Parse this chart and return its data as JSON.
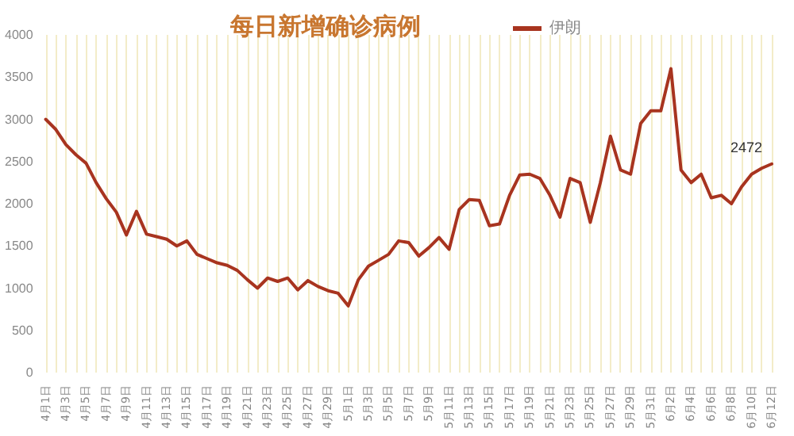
{
  "chart_data": {
    "type": "line",
    "title": "每日新增确诊病例",
    "categories": [
      "4月1日",
      null,
      "4月3日",
      null,
      "4月5日",
      null,
      "4月7日",
      null,
      "4月9日",
      null,
      "4月11日",
      null,
      "4月13日",
      null,
      "4月15日",
      null,
      "4月17日",
      null,
      "4月19日",
      null,
      "4月21日",
      null,
      "4月23日",
      null,
      "4月25日",
      null,
      "4月27日",
      null,
      "4月29日",
      null,
      "5月1日",
      null,
      "5月3日",
      null,
      "5月5日",
      null,
      "5月7日",
      null,
      "5月9日",
      null,
      "5月11日",
      null,
      "5月13日",
      null,
      "5月15日",
      null,
      "5月17日",
      null,
      "5月19日",
      null,
      "5月21日",
      null,
      "5月23日",
      null,
      "5月25日",
      null,
      "5月27日",
      null,
      "5月29日",
      null,
      "5月31日",
      null,
      "6月2日",
      null,
      "6月4日",
      null,
      "6月6日",
      null,
      "6月8日",
      null,
      "6月10日",
      null,
      "6月12日"
    ],
    "series": [
      {
        "name": "伊朗",
        "color": "#a8341f",
        "values": [
          3000,
          2880,
          2700,
          2580,
          2480,
          2250,
          2060,
          1900,
          1630,
          1910,
          1640,
          1610,
          1580,
          1500,
          1560,
          1400,
          1350,
          1300,
          1270,
          1210,
          1100,
          1000,
          1120,
          1080,
          1120,
          980,
          1090,
          1020,
          970,
          940,
          790,
          1100,
          1260,
          1330,
          1400,
          1560,
          1540,
          1380,
          1480,
          1600,
          1460,
          1930,
          2050,
          2040,
          1740,
          1760,
          2100,
          2340,
          2350,
          2300,
          2100,
          1840,
          2300,
          2250,
          1780,
          2250,
          2800,
          2400,
          2350,
          2950,
          3100,
          3100,
          3600,
          2400,
          2250,
          2350,
          2070,
          2100,
          2000,
          2200,
          2350,
          2420,
          2472
        ],
        "value_labels": [
          null,
          null,
          null,
          null,
          null,
          null,
          null,
          null,
          null,
          null,
          null,
          null,
          null,
          null,
          null,
          null,
          null,
          null,
          null,
          null,
          null,
          null,
          null,
          null,
          null,
          null,
          null,
          null,
          null,
          null,
          null,
          null,
          null,
          null,
          null,
          null,
          null,
          null,
          null,
          null,
          null,
          null,
          null,
          null,
          null,
          null,
          null,
          null,
          null,
          null,
          null,
          null,
          null,
          null,
          null,
          null,
          null,
          null,
          null,
          null,
          null,
          null,
          null,
          null,
          null,
          null,
          null,
          null,
          null,
          null,
          null,
          null,
          "2472"
        ]
      }
    ],
    "ylim": [
      0,
      4000
    ],
    "yticks": [
      0,
      500,
      1000,
      1500,
      2000,
      2500,
      3000,
      3500,
      4000
    ],
    "grid": "x",
    "legend": "top",
    "marker": "none",
    "line_style": "solid"
  }
}
